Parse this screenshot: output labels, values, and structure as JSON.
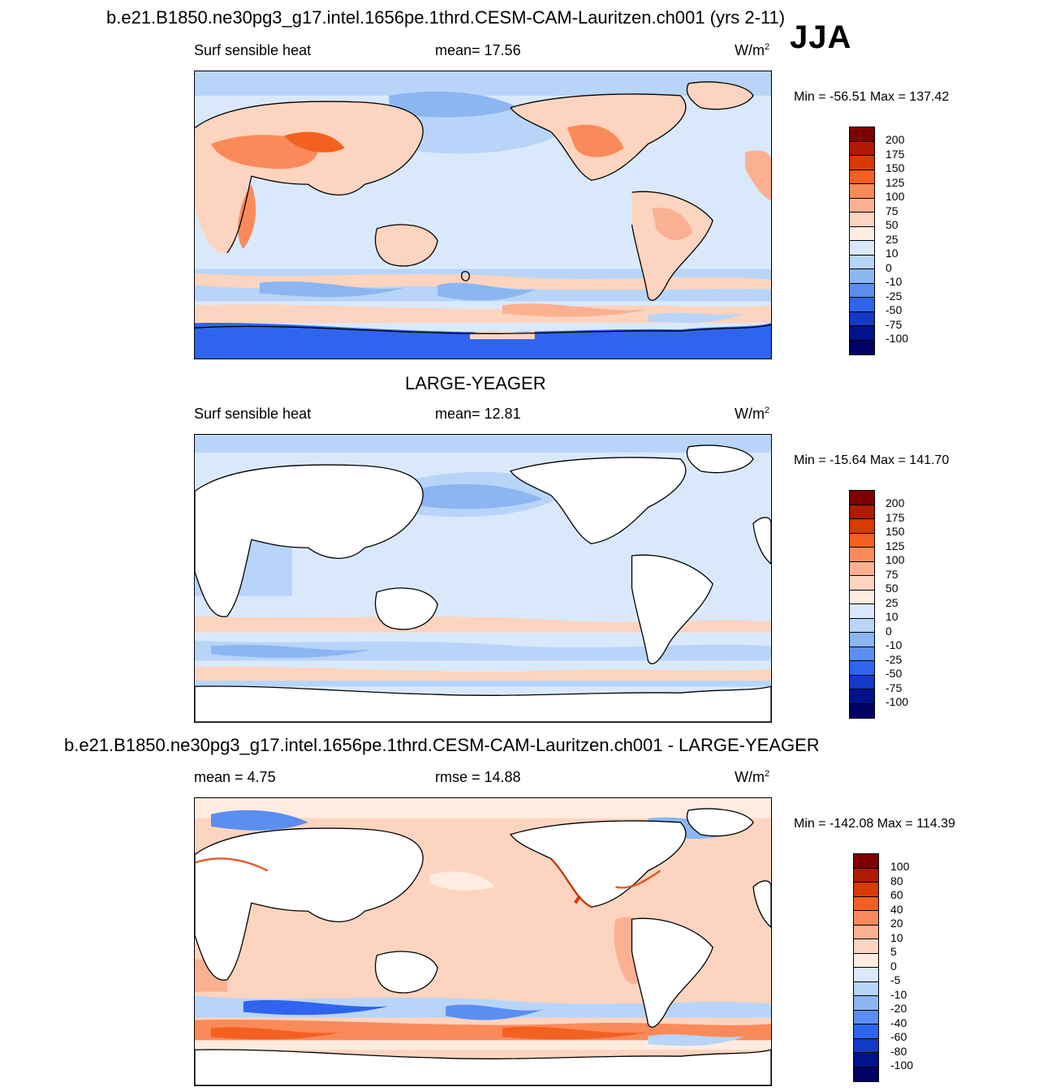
{
  "season": "JJA",
  "panel1": {
    "title": "b.e21.B1850.ne30pg3_g17.intel.1656pe.1thrd.CESM-CAM-Lauritzen.ch001 (yrs 2-11)",
    "left": "Surf sensible heat",
    "center": "mean=  17.56",
    "units": "W/m",
    "units_sup": "2",
    "minmax": "Min = -56.51 Max = 137.42",
    "colorbar_labels": [
      "200",
      "175",
      "150",
      "125",
      "100",
      "75",
      "50",
      "25",
      "10",
      "0",
      "-10",
      "-25",
      "-50",
      "-75",
      "-100"
    ]
  },
  "panel2": {
    "title": "LARGE-YEAGER",
    "left": "Surf sensible heat",
    "center": "mean=  12.81",
    "units": "W/m",
    "units_sup": "2",
    "minmax": "Min = -15.64 Max = 141.70",
    "colorbar_labels": [
      "200",
      "175",
      "150",
      "125",
      "100",
      "75",
      "50",
      "25",
      "10",
      "0",
      "-10",
      "-25",
      "-50",
      "-75",
      "-100"
    ]
  },
  "panel3": {
    "title": "b.e21.B1850.ne30pg3_g17.intel.1656pe.1thrd.CESM-CAM-Lauritzen.ch001 - LARGE-YEAGER",
    "left": "mean =   4.75",
    "center": "rmse =  14.88",
    "units": "W/m",
    "units_sup": "2",
    "minmax": "Min = -142.08 Max = 114.39",
    "colorbar_labels": [
      "100",
      "80",
      "60",
      "40",
      "20",
      "10",
      "5",
      "0",
      "-5",
      "-10",
      "-20",
      "-40",
      "-60",
      "-80",
      "-100"
    ]
  },
  "colors": {
    "palette": [
      "#7f0000",
      "#b01a00",
      "#d93a00",
      "#f4601f",
      "#fb8a5a",
      "#fcb092",
      "#fdd4bf",
      "#fdecdf",
      "#d9e9fb",
      "#b8d4f8",
      "#8bb6f2",
      "#5b8ef0",
      "#2f64ee",
      "#1339c9",
      "#00128c",
      "#000066"
    ],
    "ocean_light_blue": "#d9e9fb",
    "ocean_blue": "#b8d4f8",
    "salmon": "#fdd4bf",
    "orange": "#fb8a5a",
    "deep_blue": "#2f64ee",
    "land_white": "#ffffff"
  }
}
